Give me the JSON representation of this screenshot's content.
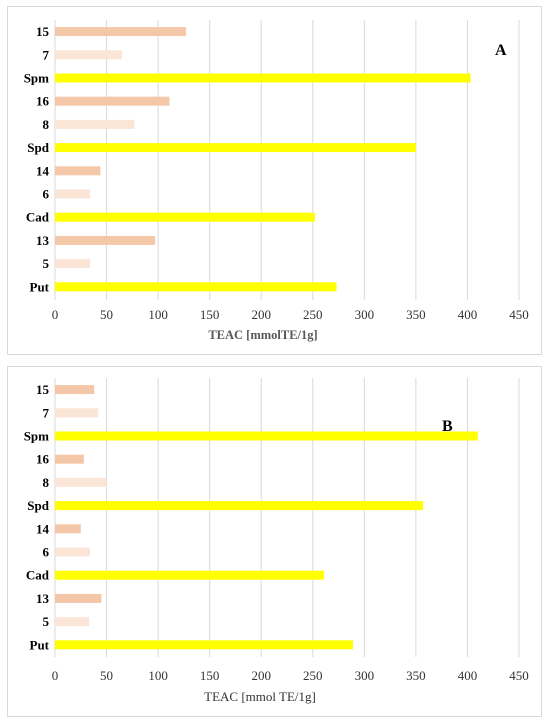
{
  "colors": {
    "amine": "#ffff00",
    "compound_dark": "#f4c7a8",
    "compound_light": "#fbe5d6"
  },
  "chart_data": [
    {
      "type": "bar",
      "orientation": "horizontal",
      "panel_label": "A",
      "categories": [
        "15",
        "7",
        "Spm",
        "16",
        "8",
        "Spd",
        "14",
        "6",
        "Cad",
        "13",
        "5",
        "Put"
      ],
      "values": [
        127,
        65,
        403,
        111,
        77,
        350,
        44,
        34,
        252,
        97,
        34,
        273
      ],
      "bar_colors": [
        "compound_dark",
        "compound_light",
        "amine",
        "compound_dark",
        "compound_light",
        "amine",
        "compound_dark",
        "compound_light",
        "amine",
        "compound_dark",
        "compound_light",
        "amine"
      ],
      "xlabel": "TEAC [mmolTE/1g]",
      "xlim": [
        0,
        450
      ],
      "xticks": [
        0,
        50,
        100,
        150,
        200,
        250,
        300,
        350,
        400,
        450
      ],
      "grid": "vertical"
    },
    {
      "type": "bar",
      "orientation": "horizontal",
      "panel_label": "B",
      "categories": [
        "15",
        "7",
        "Spm",
        "16",
        "8",
        "Spd",
        "14",
        "6",
        "Cad",
        "13",
        "5",
        "Put"
      ],
      "values": [
        38,
        42,
        410,
        28,
        50,
        357,
        25,
        34,
        261,
        45,
        33,
        289
      ],
      "bar_colors": [
        "compound_dark",
        "compound_light",
        "amine",
        "compound_dark",
        "compound_light",
        "amine",
        "compound_dark",
        "compound_light",
        "amine",
        "compound_dark",
        "compound_light",
        "amine"
      ],
      "xlabel": "TEAC [mmol TE/1g]",
      "xlim": [
        0,
        450
      ],
      "xticks": [
        0,
        50,
        100,
        150,
        200,
        250,
        300,
        350,
        400,
        450
      ],
      "grid": "vertical"
    }
  ]
}
